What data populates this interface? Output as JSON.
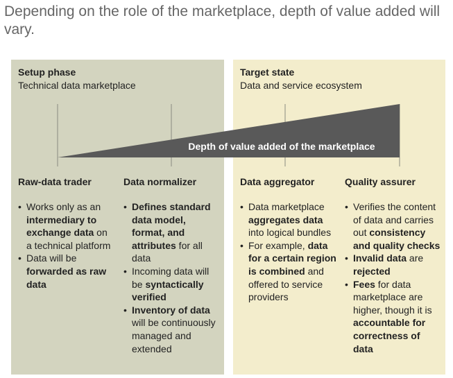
{
  "title": "Depending on the role of the marketplace, depth of value added will vary.",
  "setup": {
    "title": "Setup phase",
    "subtitle": "Technical data marketplace"
  },
  "target": {
    "title": "Target state",
    "subtitle": "Data and service ecosystem"
  },
  "wedge_label": "Depth of value added of the marketplace",
  "colors": {
    "left_panel": "#d3d4bf",
    "right_panel": "#f3edcc",
    "wedge": "#595959"
  },
  "columns": [
    {
      "title": "Raw-data trader",
      "bullets": [
        [
          {
            "t": "Works only as an "
          },
          {
            "t": "intermediary to exchange data",
            "b": true
          },
          {
            "t": " on a technical platform"
          }
        ],
        [
          {
            "t": "Data will be "
          },
          {
            "t": "forwarded as raw data",
            "b": true
          }
        ]
      ]
    },
    {
      "title": "Data normalizer",
      "bullets": [
        [
          {
            "t": "Defines standard data model, format, and attributes",
            "b": true
          },
          {
            "t": " for all data"
          }
        ],
        [
          {
            "t": "Incoming data will be "
          },
          {
            "t": "syntactically verified",
            "b": true
          }
        ],
        [
          {
            "t": "Inventory of data",
            "b": true
          },
          {
            "t": " will be continuously managed and extended"
          }
        ]
      ]
    },
    {
      "title": "Data aggregator",
      "bullets": [
        [
          {
            "t": "Data marketplace "
          },
          {
            "t": "aggregates data",
            "b": true
          },
          {
            "t": " into logical bundles"
          }
        ],
        [
          {
            "t": "For example, "
          },
          {
            "t": "data for a certain region is combined",
            "b": true
          },
          {
            "t": " and offered to service providers"
          }
        ]
      ]
    },
    {
      "title": "Quality assurer",
      "bullets": [
        [
          {
            "t": "Verifies the content of data and carries out "
          },
          {
            "t": "consistency and quality checks",
            "b": true
          }
        ],
        [
          {
            "t": "Invalid data",
            "b": true
          },
          {
            "t": " are "
          },
          {
            "t": "rejected",
            "b": true
          }
        ],
        [
          {
            "t": "Fees",
            "b": true
          },
          {
            "t": " for data marketplace are higher, though it is "
          },
          {
            "t": "accountable for correctness of data",
            "b": true
          }
        ]
      ]
    }
  ]
}
